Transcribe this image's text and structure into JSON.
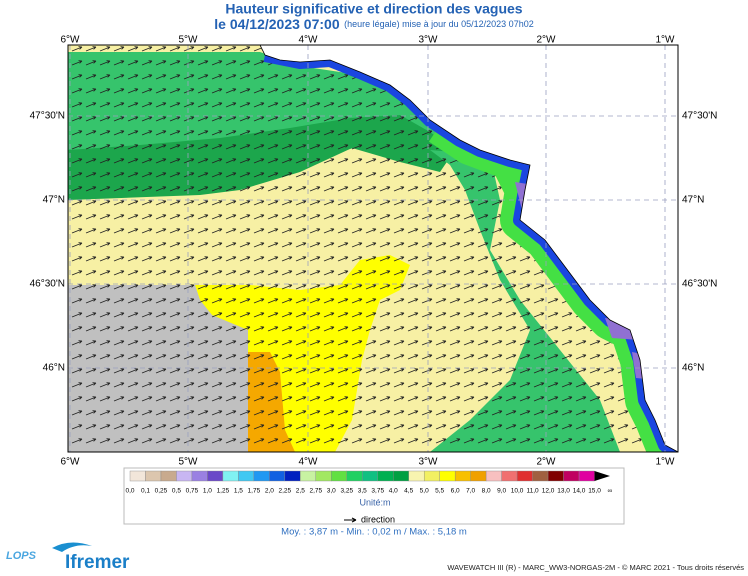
{
  "header": {
    "title": "Hauteur significative et direction des vagues",
    "date": "le 04/12/2023 07:00",
    "update": "(heure légale) mise à jour du 05/12/2023 07h02"
  },
  "map": {
    "lon_labels": [
      "6°W",
      "5°W",
      "4°W",
      "3°W",
      "2°W",
      "1°W"
    ],
    "lat_labels": [
      "47°30'N",
      "47°N",
      "46°30'N",
      "46°N"
    ]
  },
  "colorbar": {
    "labels": [
      "0,0",
      "0,1",
      "0,25",
      "0,5",
      "0,75",
      "1,0",
      "1,25",
      "1,5",
      "1,75",
      "2,0",
      "2,25",
      "2,5",
      "2,75",
      "3,0",
      "3,25",
      "3,5",
      "3,75",
      "4,0",
      "4,5",
      "5,0",
      "5,5",
      "6,0",
      "7,0",
      "8,0",
      "9,0",
      "10,0",
      "11,0",
      "12,0",
      "13,0",
      "14,0",
      "15,0",
      "∞"
    ],
    "colors": [
      "#f2e6da",
      "#dcc6ae",
      "#c8aa8e",
      "#c8b6f2",
      "#9a80e2",
      "#6a48c8",
      "#80f2f2",
      "#40c8f2",
      "#2098f2",
      "#1060e2",
      "#0020c0",
      "#c8f2a2",
      "#a2e862",
      "#62e042",
      "#20d062",
      "#10c082",
      "#00b052",
      "#00a042",
      "#f8f4b0",
      "#f2f062",
      "#ffff00",
      "#f8c000",
      "#f0a000",
      "#f8c0c0",
      "#f07070",
      "#e03030",
      "#a06040",
      "#800000",
      "#c00060",
      "#e000a0",
      "#000000"
    ],
    "unit": "Unité:m"
  },
  "legend": {
    "direction": "direction"
  },
  "stats": "Moy. : 3,87 m   -   Min. : 0,02 m / Max. : 5,18 m",
  "logos": {
    "lops": "LOPS",
    "ifremer": "Ifremer"
  },
  "footer": "WAVEWATCH III (R) - MARC_WW3-NORGAS-2M - © MARC 2021 - Tous droits réservés"
}
